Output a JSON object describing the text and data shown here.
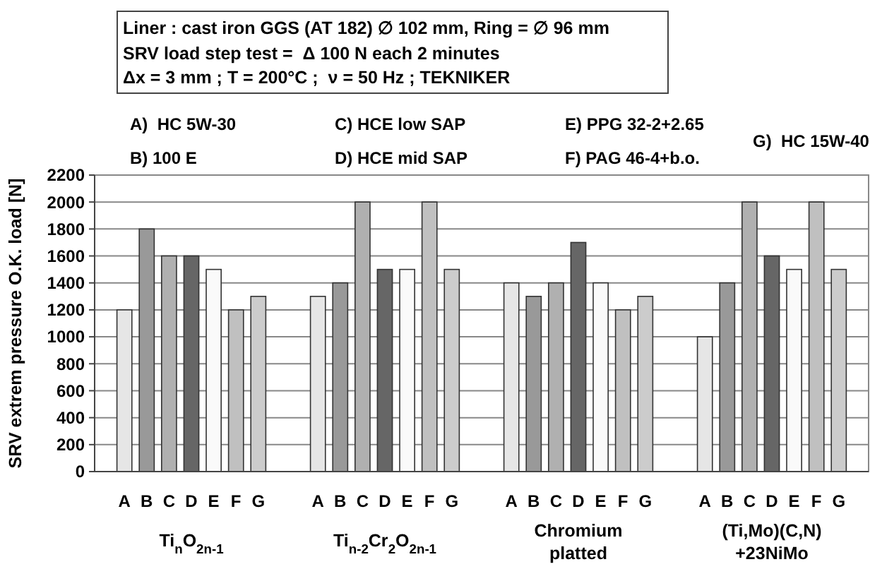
{
  "chart_data": {
    "type": "bar",
    "title": "Liner : cast iron GGS (AT 182) ∅ 102 mm,  Ring = ∅ 96 mm",
    "subtitle": "SRV load step test =  Δ 100 N each 2 minutes\nΔx = 3 mm ; T = 200°C ;  ν = 50 Hz ; TEKNIKER",
    "ylabel": "SRV extrem pressure O.K. load [N]",
    "annotations": [
      "A)  HC 5W-30",
      "B) 100 E",
      "C) HCE low SAP",
      "D) HCE mid SAP",
      "E) PPG 32-2+2.65",
      "F) PAG 46-4+b.o.",
      "G)  HC 15W-40"
    ],
    "categories": [
      "Ti$_{n}$O$_{2n-1}$",
      "Ti$_{n-2}$Cr$_{2}$O$_{2n-1}$",
      "Chromium platted",
      "(Ti,Mo)(C,N) +23NiMo"
    ],
    "series": [
      {
        "name": "A",
        "color": "#e6e6e6",
        "values": [
          1200,
          1300,
          1400,
          1000
        ]
      },
      {
        "name": "B",
        "color": "#999999",
        "values": [
          1800,
          1400,
          1300,
          1400
        ]
      },
      {
        "name": "C",
        "color": "#b0b0b0",
        "values": [
          1600,
          2000,
          1400,
          2000
        ]
      },
      {
        "name": "D",
        "color": "#666666",
        "values": [
          1600,
          1500,
          1700,
          1600
        ]
      },
      {
        "name": "E",
        "color": "#fafafa",
        "values": [
          1500,
          1500,
          1400,
          1500
        ]
      },
      {
        "name": "F",
        "color": "#c0c0c0",
        "values": [
          1200,
          2000,
          1200,
          2000
        ]
      },
      {
        "name": "G",
        "color": "#cccccc",
        "values": [
          1300,
          1500,
          1300,
          1500
        ]
      }
    ],
    "ylim": [
      0,
      2200
    ],
    "yticks": [
      0,
      200,
      400,
      600,
      800,
      1000,
      1200,
      1400,
      1600,
      1800,
      2000,
      2200
    ],
    "grid": "y"
  }
}
